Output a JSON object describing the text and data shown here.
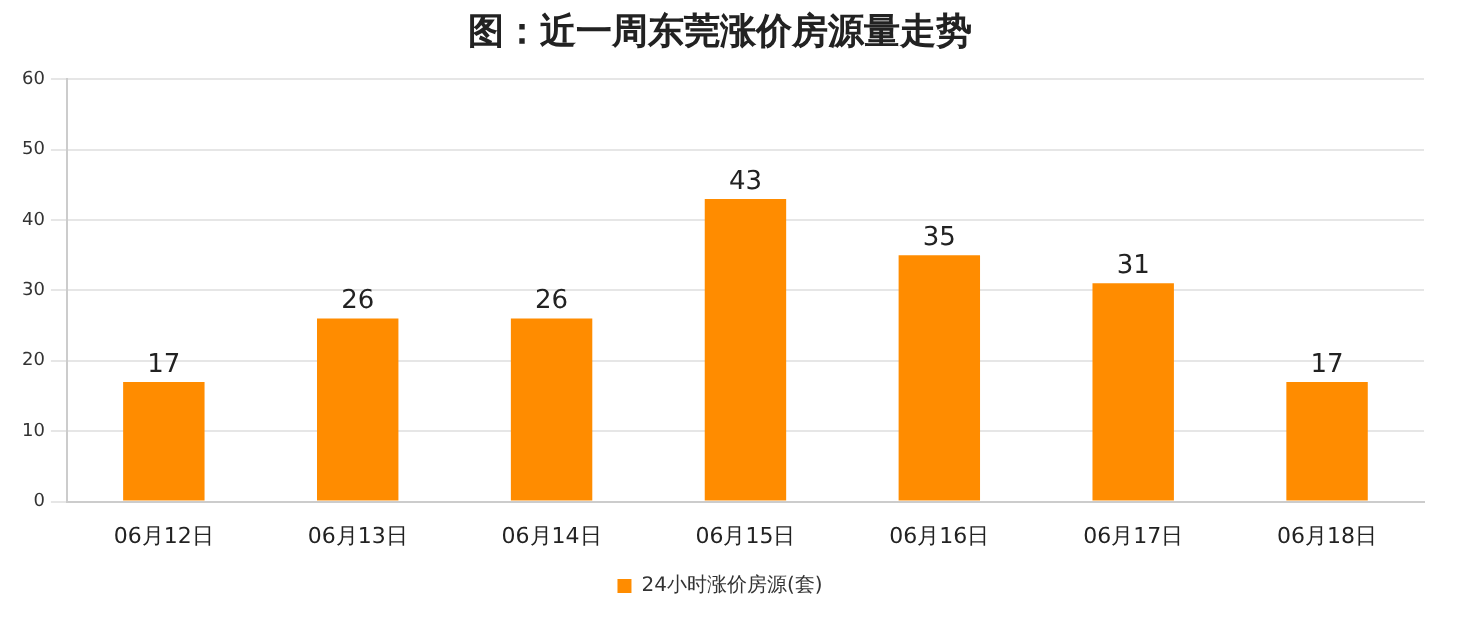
{
  "chart_data": {
    "type": "bar",
    "title": "图：近一周东莞涨价房源量走势",
    "categories": [
      "06月12日",
      "06月13日",
      "06月14日",
      "06月15日",
      "06月16日",
      "06月17日",
      "06月18日"
    ],
    "series": [
      {
        "name": "24小时涨价房源(套)",
        "color": "#ff8c00",
        "values": [
          17,
          26,
          26,
          43,
          35,
          31,
          17
        ]
      }
    ],
    "ylim": [
      0,
      60
    ],
    "yticks": [
      0,
      10,
      20,
      30,
      40,
      50,
      60
    ],
    "grid": "y",
    "legend": "bottom",
    "data_labels": true
  }
}
